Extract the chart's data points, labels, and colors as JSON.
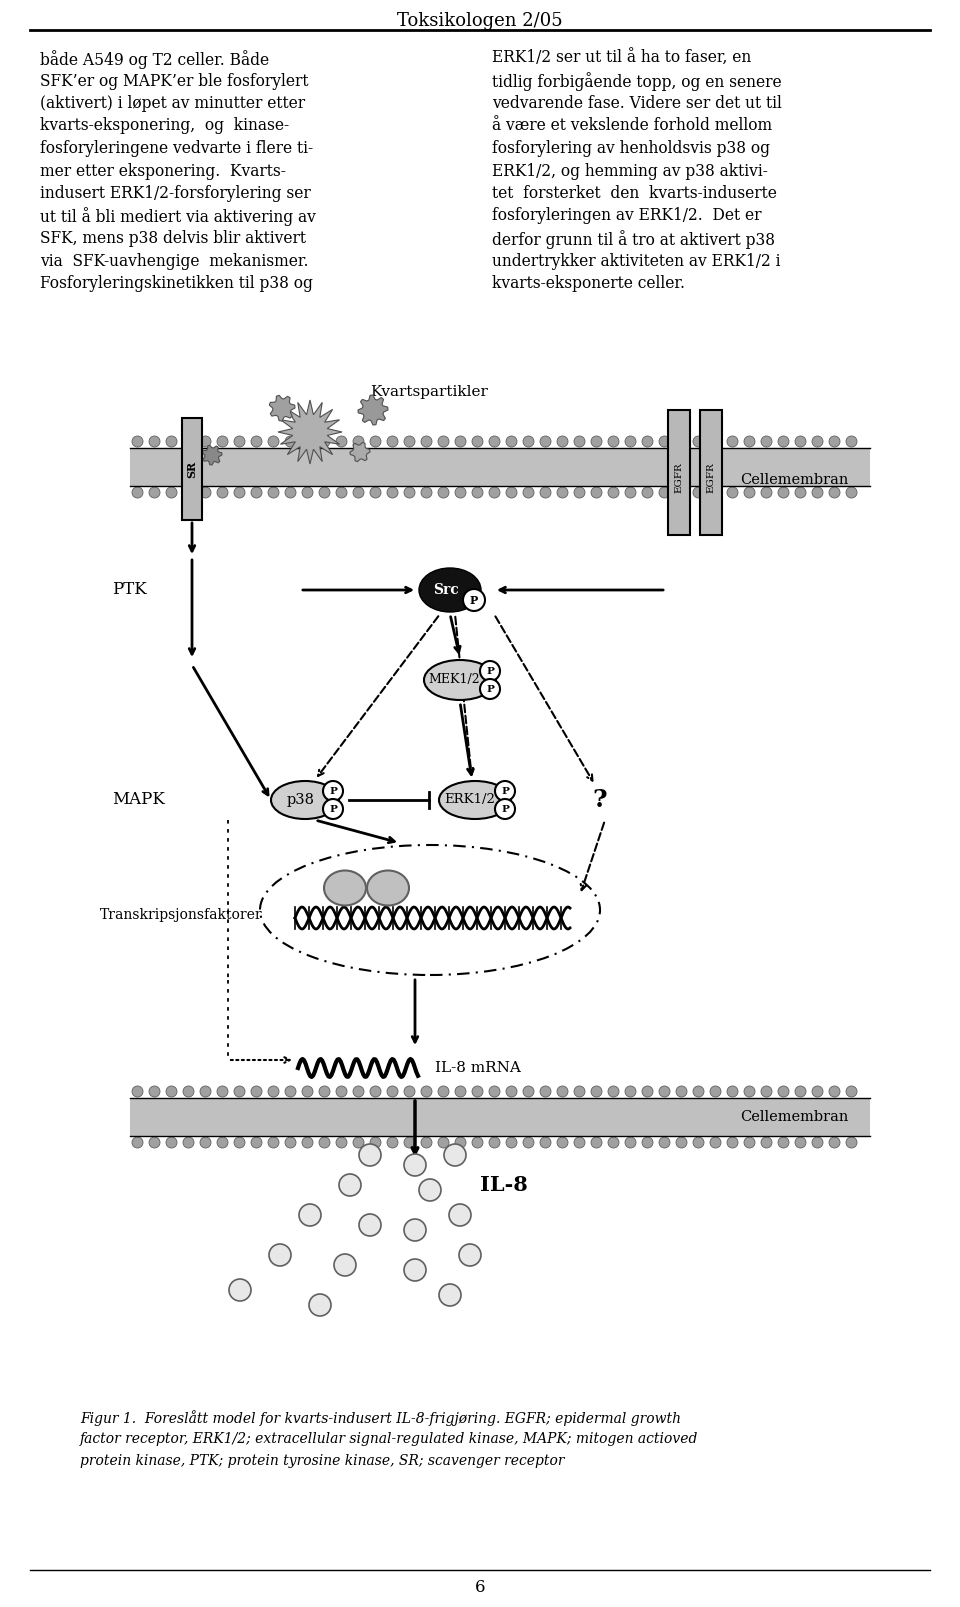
{
  "title": "Toksikologen 2/05",
  "page_number": "6",
  "bg_color": "#ffffff",
  "text_color": "#000000",
  "left_text_lines": [
    "både A549 og T2 celler. Både",
    "SFK’er og MAPK’er ble fosforylert",
    "(aktivert) i løpet av minutter etter",
    "kvarts-eksponering,  og  kinase-",
    "fosforyleringene vedvarte i flere ti-",
    "mer etter eksponering.  Kvarts-",
    "indusert ERK1/2-forsforylering ser",
    "ut til å bli mediert via aktivering av",
    "SFK, mens p38 delvis blir aktivert",
    "via  SFK-uavhengige  mekanismer.",
    "Fosforyleringskinetikken til p38 og"
  ],
  "right_text_lines": [
    "ERK1/2 ser ut til å ha to faser, en",
    "tidlig forbigående topp, og en senere",
    "vedvarende fase. Videre ser det ut til",
    "å være et vekslende forhold mellom",
    "fosforylering av henholdsvis p38 og",
    "ERK1/2, og hemming av p38 aktivi-",
    "tet  forsterket  den  kvarts-induserte",
    "fosforyleringen av ERK1/2.  Det er",
    "derfor grunn til å tro at aktivert p38",
    "undertrykker aktiviteten av ERK1/2 i",
    "kvarts-eksponerte celler."
  ],
  "caption_line1": "Figur 1.  Foreslått model for kvarts-indusert IL-8-frigjøring. EGFR; epidermal growth",
  "caption_line2": "factor receptor, ERK1/2; extracellular signal-regulated kinase, MAPK; mitogen actioved",
  "caption_line3": "protein kinase, PTK; protein tyrosine kinase, SR; scavenger receptor",
  "membrane_color": "#c0c0c0",
  "dot_color": "#a0a0a0",
  "receptor_color": "#b8b8b8",
  "ellipse_color": "#c0c0c0",
  "src_color": "#111111"
}
